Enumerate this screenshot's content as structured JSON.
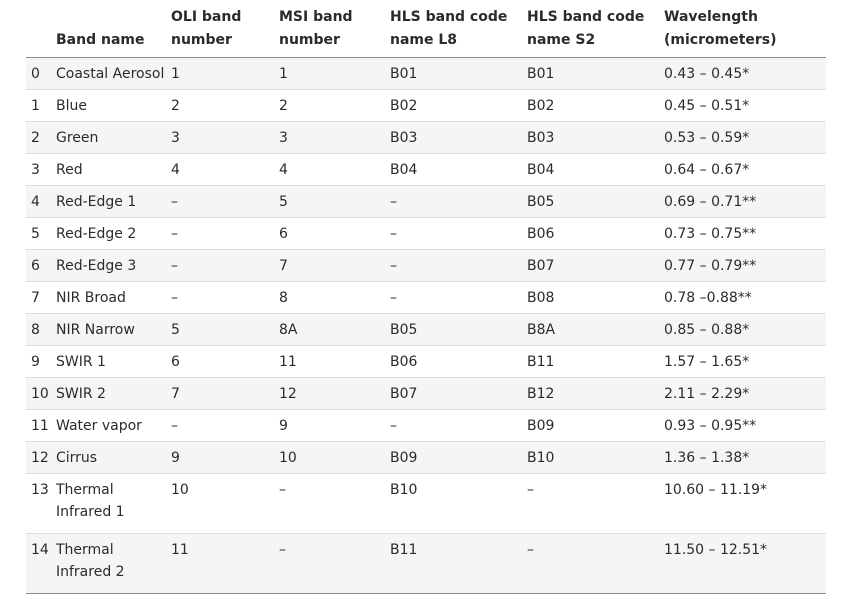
{
  "table": {
    "headers": {
      "index": "",
      "band_name": "Band name",
      "oli": "OLI band number",
      "msi": "MSI band number",
      "hls_l8": "HLS band code name L8",
      "hls_s2": "HLS band code name S2",
      "wavelength": "Wavelength (micrometers)"
    },
    "rows": [
      {
        "idx": "0",
        "name": "Coastal Aerosol",
        "oli": "1",
        "msi": "1",
        "l8": "B01",
        "s2": "B01",
        "wl": "0.43 – 0.45*"
      },
      {
        "idx": "1",
        "name": "Blue",
        "oli": "2",
        "msi": "2",
        "l8": "B02",
        "s2": "B02",
        "wl": "0.45 – 0.51*"
      },
      {
        "idx": "2",
        "name": "Green",
        "oli": "3",
        "msi": "3",
        "l8": "B03",
        "s2": "B03",
        "wl": "0.53 – 0.59*"
      },
      {
        "idx": "3",
        "name": "Red",
        "oli": "4",
        "msi": "4",
        "l8": "B04",
        "s2": "B04",
        "wl": "0.64 – 0.67*"
      },
      {
        "idx": "4",
        "name": "Red-Edge 1",
        "oli": "–",
        "msi": "5",
        "l8": "–",
        "s2": "B05",
        "wl": "0.69 – 0.71**"
      },
      {
        "idx": "5",
        "name": "Red-Edge 2",
        "oli": "–",
        "msi": "6",
        "l8": "–",
        "s2": "B06",
        "wl": "0.73 – 0.75**"
      },
      {
        "idx": "6",
        "name": "Red-Edge 3",
        "oli": "–",
        "msi": "7",
        "l8": "–",
        "s2": "B07",
        "wl": "0.77 – 0.79**"
      },
      {
        "idx": "7",
        "name": "NIR Broad",
        "oli": "–",
        "msi": "8",
        "l8": "–",
        "s2": "B08",
        "wl": "0.78 –0.88**"
      },
      {
        "idx": "8",
        "name": "NIR Narrow",
        "oli": "5",
        "msi": "8A",
        "l8": "B05",
        "s2": "B8A",
        "wl": "0.85 – 0.88*"
      },
      {
        "idx": "9",
        "name": "SWIR 1",
        "oli": "6",
        "msi": "11",
        "l8": "B06",
        "s2": "B11",
        "wl": "1.57 – 1.65*"
      },
      {
        "idx": "10",
        "name": "SWIR 2",
        "oli": "7",
        "msi": "12",
        "l8": "B07",
        "s2": "B12",
        "wl": "2.11 – 2.29*"
      },
      {
        "idx": "11",
        "name": "Water vapor",
        "oli": "–",
        "msi": "9",
        "l8": "–",
        "s2": "B09",
        "wl": "0.93 – 0.95**"
      },
      {
        "idx": "12",
        "name": "Cirrus",
        "oli": "9",
        "msi": "10",
        "l8": "B09",
        "s2": "B10",
        "wl": "1.36 – 1.38*"
      },
      {
        "idx": "13",
        "name": "Thermal Infrared 1",
        "oli": "10",
        "msi": "–",
        "l8": "B10",
        "s2": "–",
        "wl": "10.60 – 11.19*"
      },
      {
        "idx": "14",
        "name": "Thermal Infrared 2",
        "oli": "11",
        "msi": "–",
        "l8": "B11",
        "s2": "–",
        "wl": "11.50 – 12.51*"
      }
    ]
  }
}
